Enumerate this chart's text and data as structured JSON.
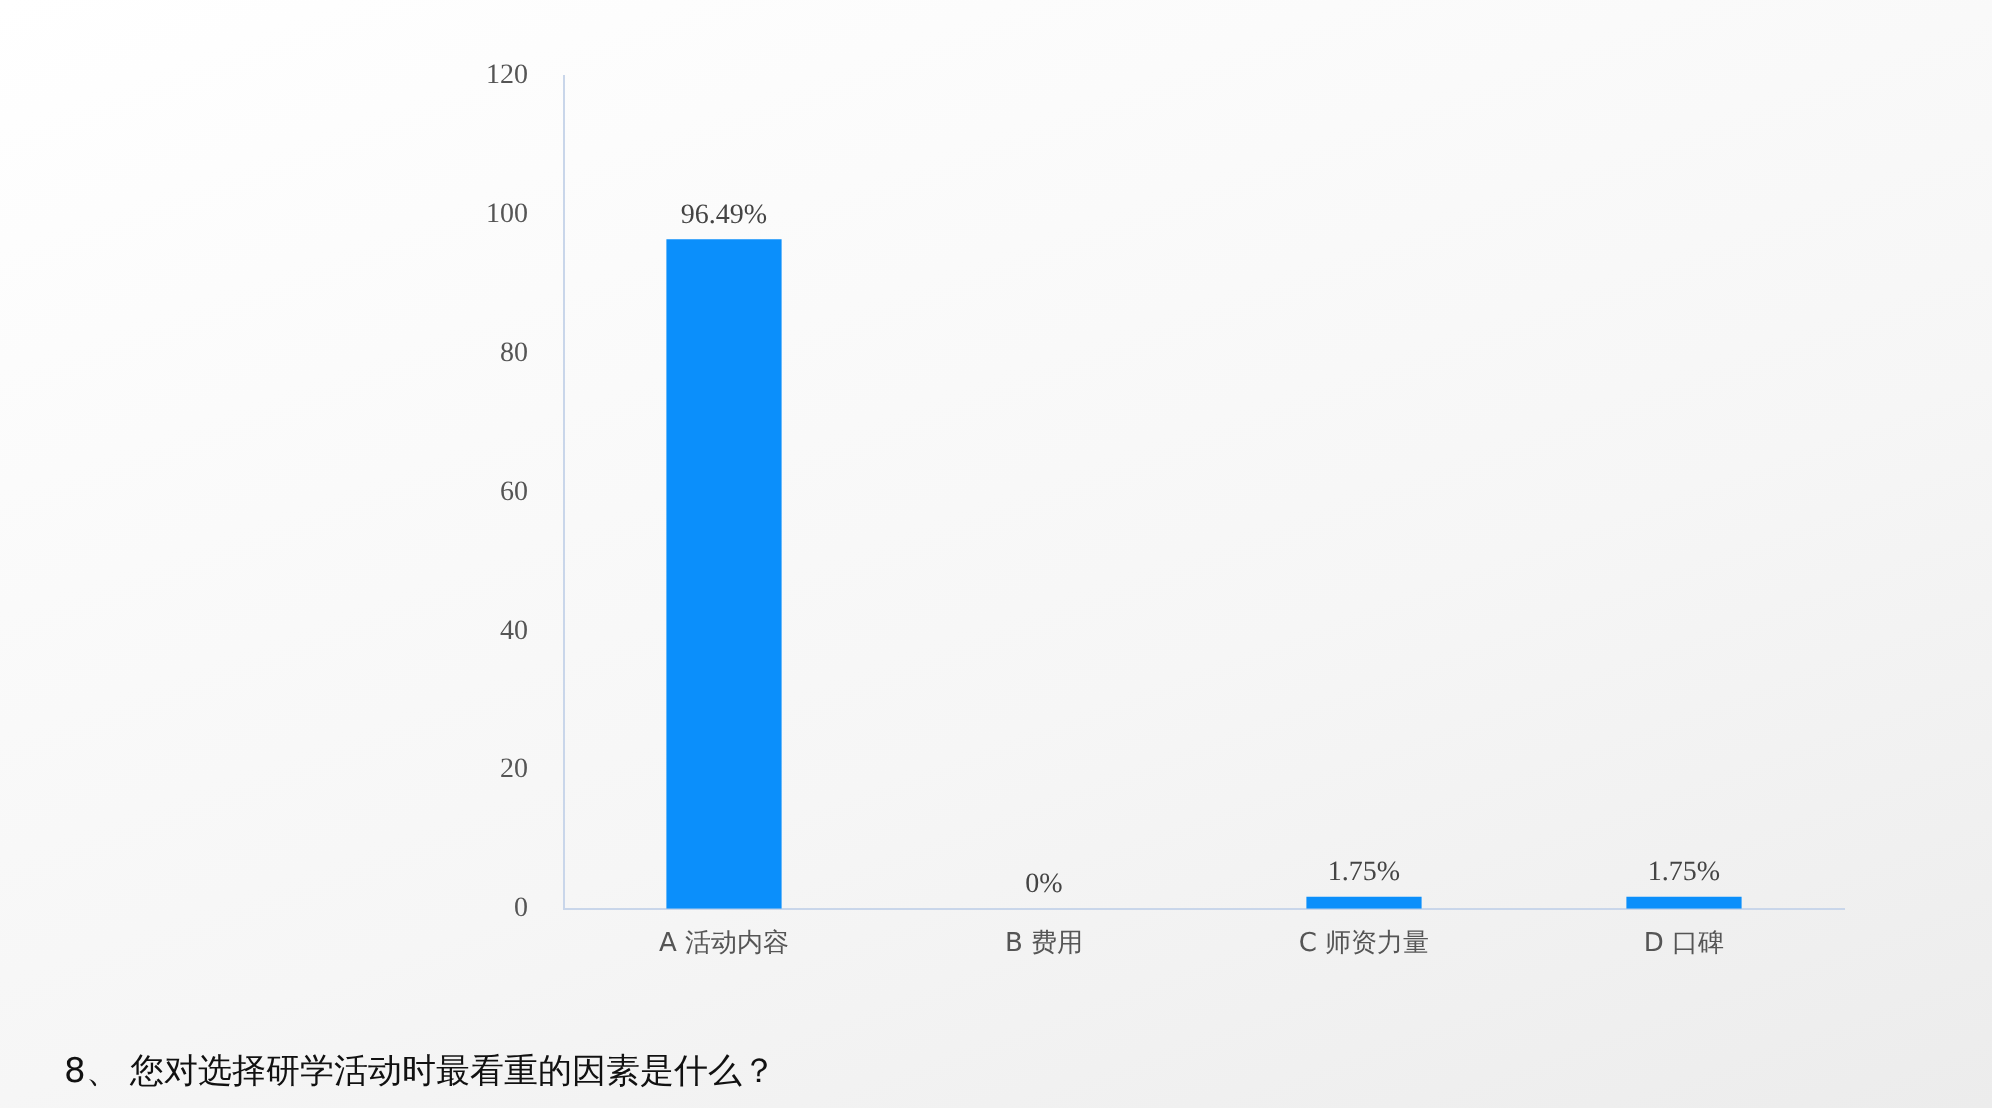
{
  "chart_data": {
    "type": "bar",
    "title": "8、 您对选择研学活动时最看重的因素是什么？",
    "categories": [
      "A 活动内容",
      "B 费用",
      "C 师资力量",
      "D 口碑"
    ],
    "values": [
      96.49,
      0,
      1.75,
      1.75
    ],
    "value_labels": [
      "96.49%",
      "0%",
      "1.75%",
      "1.75%"
    ],
    "color": "#0b8ffb",
    "ylim": [
      0,
      120
    ],
    "yticks": [
      0,
      20,
      40,
      60,
      80,
      100,
      120
    ],
    "grid": false,
    "legend": false
  }
}
